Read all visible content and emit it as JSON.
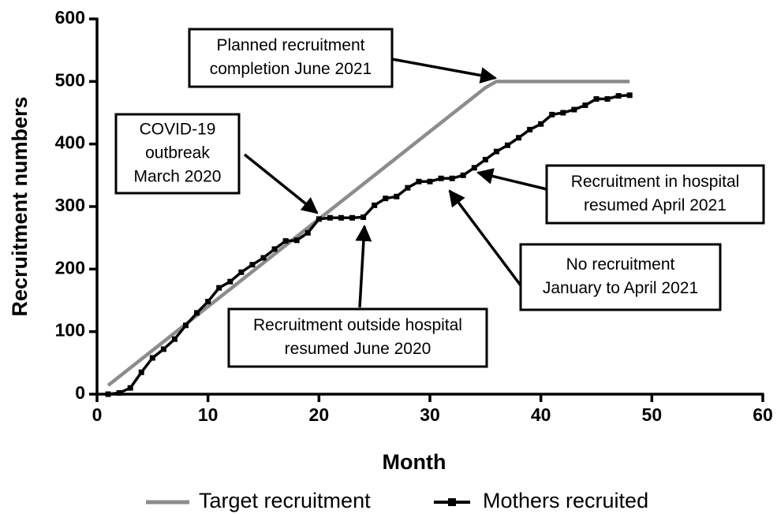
{
  "chart_data": {
    "type": "line",
    "xlabel": "Month",
    "ylabel": "Recruitment numbers",
    "xlim": [
      0,
      60
    ],
    "xticks": [
      0,
      10,
      20,
      30,
      40,
      50,
      60
    ],
    "ylim": [
      0,
      600
    ],
    "yticks": [
      0,
      100,
      200,
      300,
      400,
      500,
      600
    ],
    "grid": false,
    "legend": "bottom",
    "series": [
      {
        "name": "Target recruitment",
        "color": "#8c8c8c",
        "markers": false,
        "x": [
          1,
          35,
          36,
          48
        ],
        "values": [
          14,
          490,
          500,
          500
        ]
      },
      {
        "name": "Mothers recruited",
        "color": "#000000",
        "markers": true,
        "x": [
          1,
          2,
          3,
          4,
          5,
          6,
          7,
          8,
          9,
          10,
          11,
          12,
          13,
          14,
          15,
          16,
          17,
          18,
          19,
          20,
          21,
          22,
          23,
          24,
          25,
          26,
          27,
          28,
          29,
          30,
          31,
          32,
          33,
          34,
          35,
          36,
          37,
          38,
          39,
          40,
          41,
          42,
          43,
          44,
          45,
          46,
          47,
          48
        ],
        "values": [
          0,
          2,
          10,
          35,
          58,
          72,
          88,
          110,
          130,
          148,
          170,
          180,
          195,
          207,
          218,
          232,
          245,
          246,
          258,
          280,
          282,
          282,
          282,
          283,
          302,
          313,
          316,
          330,
          340,
          340,
          345,
          345,
          350,
          362,
          375,
          388,
          398,
          410,
          423,
          432,
          447,
          450,
          455,
          462,
          472,
          472,
          477,
          478
        ]
      }
    ],
    "annotations": [
      {
        "lines": [
          "Planned recruitment",
          "completion June 2021"
        ]
      },
      {
        "lines": [
          "COVID-19",
          "outbreak",
          "March 2020"
        ]
      },
      {
        "lines": [
          "Recruitment outside hospital",
          "resumed June 2020"
        ]
      },
      {
        "lines": [
          "No recruitment",
          "January to April 2021"
        ]
      },
      {
        "lines": [
          "Recruitment in hospital",
          "resumed April 2021"
        ]
      }
    ]
  }
}
